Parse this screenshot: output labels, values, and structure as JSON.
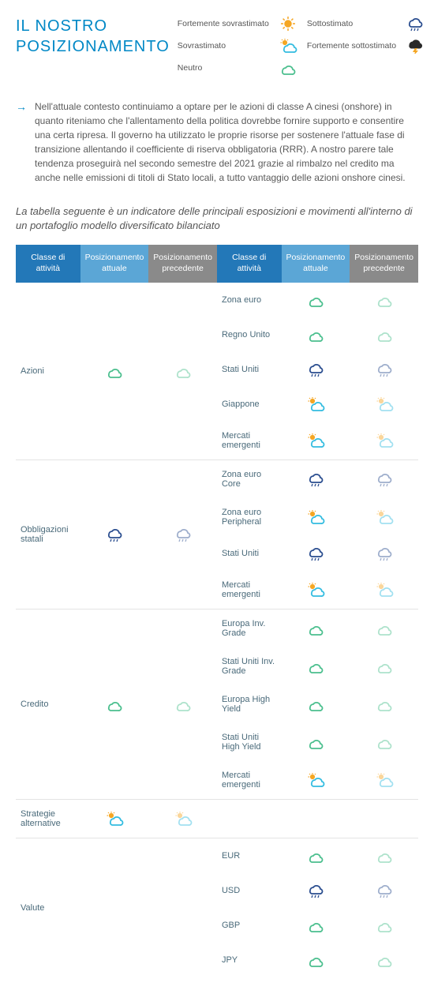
{
  "title_line1": "IL NOSTRO",
  "title_line2": "POSIZIONAMENTO",
  "legend": {
    "strong_over": "Fortemente sovrastimato",
    "over": "Sovrastimato",
    "neutral": "Neutro",
    "under": "Sottostimato",
    "strong_under": "Fortemente sottostimato"
  },
  "bullet_text": "Nell'attuale contesto continuiamo a optare per le azioni di classe A cinesi (onshore) in quanto riteniamo che l'allentamento della politica dovrebbe fornire supporto e consentire una certa ripresa. Il governo ha utilizzato le proprie risorse per sostenere l'attuale fase di transizione allentando il coefficiente di riserva obbligatoria (RRR). A nostro parere tale tendenza proseguirà nel secondo semestre del 2021 grazie al rimbalzo nel credito ma anche nelle emissioni di titoli di Stato locali, a tutto vantaggio delle azioni onshore cinesi.",
  "caption": "La tabella seguente è un indicatore delle principali esposizioni e movimenti all'interno di un portafoglio modello diversificato bilanciato",
  "headers": {
    "asset_class": "Classe di attività",
    "current": "Posizionamento attuale",
    "previous": "Posizionamento precedente"
  },
  "icons": {
    "strong_over": {
      "type": "sun",
      "color": "#f5a623",
      "faded": false
    },
    "over": {
      "type": "sun_cloud",
      "color": "#33bce0",
      "faded": false
    },
    "neutral": {
      "type": "cloud",
      "color": "#4bbf8e",
      "faded": false
    },
    "under": {
      "type": "rain",
      "color": "#2a4d8f",
      "faded": false
    },
    "strong_under": {
      "type": "storm",
      "color": "#2a2a2a",
      "faded": false
    }
  },
  "main_groups": [
    {
      "label": "Azioni",
      "current": "neutral",
      "previous": "neutral"
    },
    {
      "label": "Obbligazioni statali",
      "current": "under",
      "previous": "under"
    },
    {
      "label": "Credito",
      "current": "neutral",
      "previous": "neutral"
    },
    {
      "label": "Strategie alternative",
      "current": "over",
      "previous": "over"
    },
    {
      "label": "Valute",
      "current": null,
      "previous": null
    }
  ],
  "detail_groups": [
    {
      "parent": "Azioni",
      "rows": [
        {
          "label": "Zona euro",
          "current": "neutral",
          "previous": "neutral"
        },
        {
          "label": "Regno Unito",
          "current": "neutral",
          "previous": "neutral"
        },
        {
          "label": "Stati Uniti",
          "current": "under",
          "previous": "under"
        },
        {
          "label": "Giappone",
          "current": "over",
          "previous": "over"
        },
        {
          "label": "Mercati emergenti",
          "current": "over",
          "previous": "over"
        }
      ]
    },
    {
      "parent": "Obbligazioni statali",
      "rows": [
        {
          "label": "Zona euro Core",
          "current": "under",
          "previous": "under"
        },
        {
          "label": "Zona euro Peripheral",
          "current": "over",
          "previous": "over"
        },
        {
          "label": "Stati Uniti",
          "current": "under",
          "previous": "under"
        },
        {
          "label": "Mercati emergenti",
          "current": "over",
          "previous": "over"
        }
      ]
    },
    {
      "parent": "Credito",
      "rows": [
        {
          "label": "Europa Inv. Grade",
          "current": "neutral",
          "previous": "neutral"
        },
        {
          "label": "Stati Uniti Inv. Grade",
          "current": "neutral",
          "previous": "neutral"
        },
        {
          "label": "Europa High Yield",
          "current": "neutral",
          "previous": "neutral"
        },
        {
          "label": "Stati Uniti High Yield",
          "current": "neutral",
          "previous": "neutral"
        },
        {
          "label": "Mercati emergenti",
          "current": "over",
          "previous": "over"
        }
      ]
    },
    {
      "parent": "Strategie alternative",
      "rows": []
    },
    {
      "parent": "Valute",
      "rows": [
        {
          "label": "EUR",
          "current": "neutral",
          "previous": "neutral"
        },
        {
          "label": "USD",
          "current": "under",
          "previous": "under"
        },
        {
          "label": "GBP",
          "current": "neutral",
          "previous": "neutral"
        },
        {
          "label": "JPY",
          "current": "neutral",
          "previous": "neutral"
        }
      ]
    }
  ],
  "colors": {
    "th_blue": "#2378b8",
    "th_ltblue": "#5ba6d6",
    "th_grey": "#8a8a8a",
    "title": "#0088c6"
  }
}
